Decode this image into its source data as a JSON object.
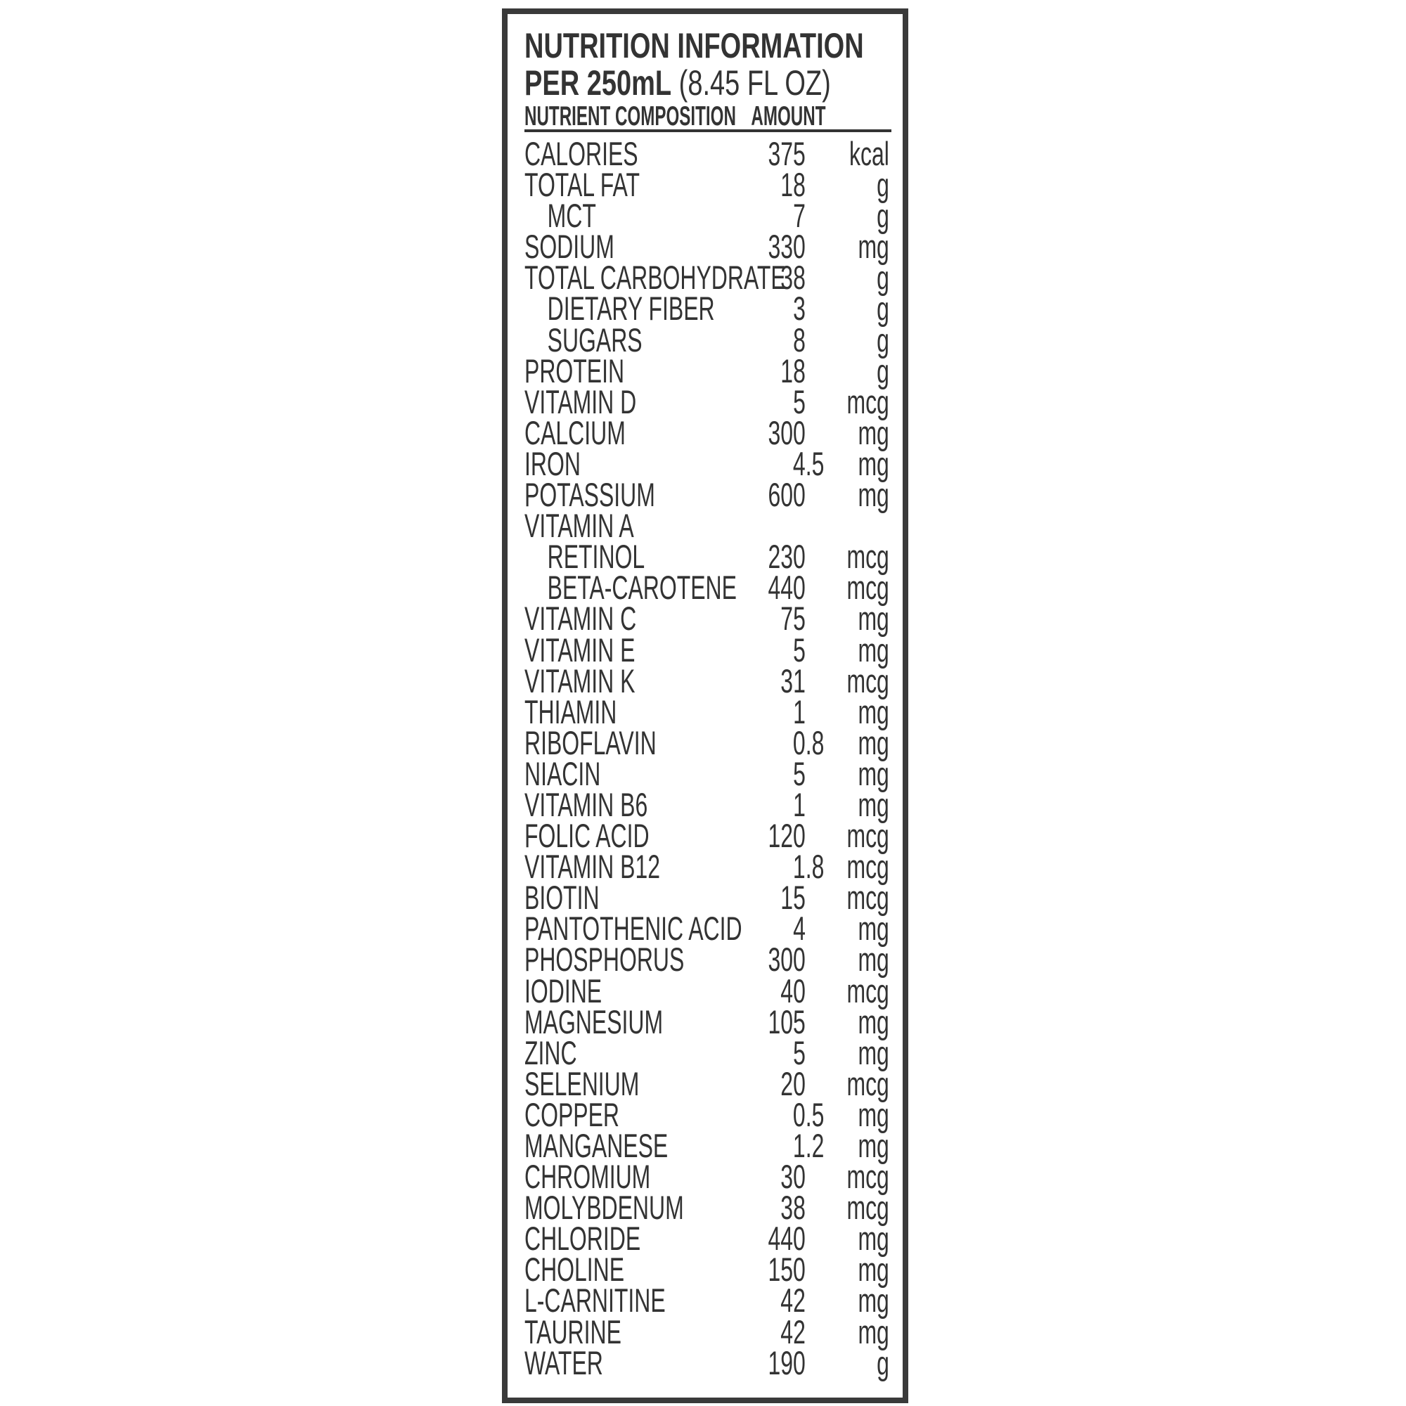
{
  "title": "NUTRITION INFORMATION",
  "serving_bold": "PER 250mL",
  "serving_regular": "(8.45 FL OZ)",
  "columns": {
    "nutrient": "NUTRIENT COMPOSITION",
    "amount": "AMOUNT"
  },
  "rows": [
    {
      "label": "CALORIES",
      "value": "375",
      "unit": "kcal"
    },
    {
      "label": "TOTAL FAT",
      "value": "18",
      "unit": "g"
    },
    {
      "label": "MCT",
      "value": "7",
      "unit": "g",
      "sub": true
    },
    {
      "label": "SODIUM",
      "value": "330",
      "unit": "mg"
    },
    {
      "label": "TOTAL CARBOHYDRATE",
      "value": "38",
      "unit": "g"
    },
    {
      "label": "DIETARY FIBER",
      "value": "3",
      "unit": "g",
      "sub": true
    },
    {
      "label": "SUGARS",
      "value": "8",
      "unit": "g",
      "sub": true
    },
    {
      "label": "PROTEIN",
      "value": "18",
      "unit": "g"
    },
    {
      "label": "VITAMIN D",
      "value": "5",
      "unit": "mcg"
    },
    {
      "label": "CALCIUM",
      "value": "300",
      "unit": "mg"
    },
    {
      "label": "IRON",
      "value": "4.5",
      "unit": "mg"
    },
    {
      "label": "POTASSIUM",
      "value": "600",
      "unit": "mg"
    },
    {
      "label": "VITAMIN A",
      "value": "",
      "unit": ""
    },
    {
      "label": "RETINOL",
      "value": "230",
      "unit": "mcg",
      "sub": true
    },
    {
      "label": "BETA-CAROTENE",
      "value": "440",
      "unit": "mcg",
      "sub": true
    },
    {
      "label": "VITAMIN  C",
      "value": "75",
      "unit": "mg"
    },
    {
      "label": "VITAMIN  E",
      "value": "5",
      "unit": "mg"
    },
    {
      "label": "VITAMIN  K",
      "value": "31",
      "unit": "mcg"
    },
    {
      "label": "THIAMIN",
      "value": "1",
      "unit": "mg"
    },
    {
      "label": "RIBOFLAVIN",
      "value": "0.8",
      "unit": "mg"
    },
    {
      "label": "NIACIN",
      "value": "5",
      "unit": "mg"
    },
    {
      "label": "VITAMIN B6",
      "value": "1",
      "unit": "mg"
    },
    {
      "label": "FOLIC ACID",
      "value": "120",
      "unit": "mcg"
    },
    {
      "label": "VITAMIN B12",
      "value": "1.8",
      "unit": "mcg"
    },
    {
      "label": "BIOTIN",
      "value": "15",
      "unit": "mcg"
    },
    {
      "label": "PANTOTHENIC ACID",
      "value": "4",
      "unit": "mg"
    },
    {
      "label": "PHOSPHORUS",
      "value": "300",
      "unit": "mg"
    },
    {
      "label": "IODINE",
      "value": "40",
      "unit": "mcg"
    },
    {
      "label": "MAGNESIUM",
      "value": "105",
      "unit": "mg"
    },
    {
      "label": "ZINC",
      "value": "5",
      "unit": "mg"
    },
    {
      "label": "SELENIUM",
      "value": "20",
      "unit": "mcg"
    },
    {
      "label": "COPPER",
      "value": "0.5",
      "unit": "mg"
    },
    {
      "label": "MANGANESE",
      "value": "1.2",
      "unit": "mg"
    },
    {
      "label": "CHROMIUM",
      "value": "30",
      "unit": "mcg"
    },
    {
      "label": "MOLYBDENUM",
      "value": "38",
      "unit": "mcg"
    },
    {
      "label": "CHLORIDE",
      "value": "440",
      "unit": "mg"
    },
    {
      "label": "CHOLINE",
      "value": "150",
      "unit": "mg"
    },
    {
      "label": "L-CARNITINE",
      "value": "42",
      "unit": "mg"
    },
    {
      "label": "TAURINE",
      "value": "42",
      "unit": "mg"
    },
    {
      "label": "WATER",
      "value": "190",
      "unit": "g"
    }
  ]
}
